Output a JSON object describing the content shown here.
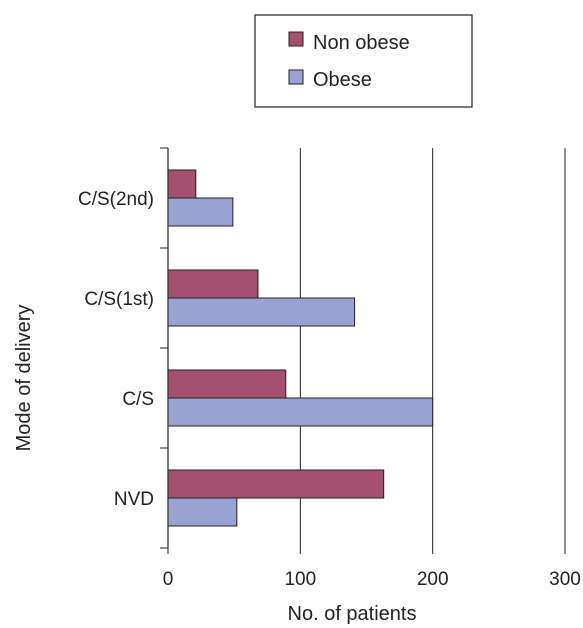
{
  "chart_data": {
    "type": "bar",
    "orientation": "horizontal",
    "title": "",
    "xlabel": "No. of patients",
    "ylabel": "Mode of delivery",
    "categories": [
      "NVD",
      "C/S",
      "C/S(1st)",
      "C/S(2nd)"
    ],
    "series": [
      {
        "name": "Non obese",
        "color": "#a5506f",
        "values": [
          163,
          89,
          68,
          21
        ]
      },
      {
        "name": "Obese",
        "color": "#98a3d4",
        "values": [
          52,
          200,
          141,
          49
        ]
      }
    ],
    "xlim": [
      0,
      300
    ],
    "xticks": [
      0,
      100,
      200,
      300
    ],
    "grid": "vertical",
    "legend_position": "top-right"
  }
}
